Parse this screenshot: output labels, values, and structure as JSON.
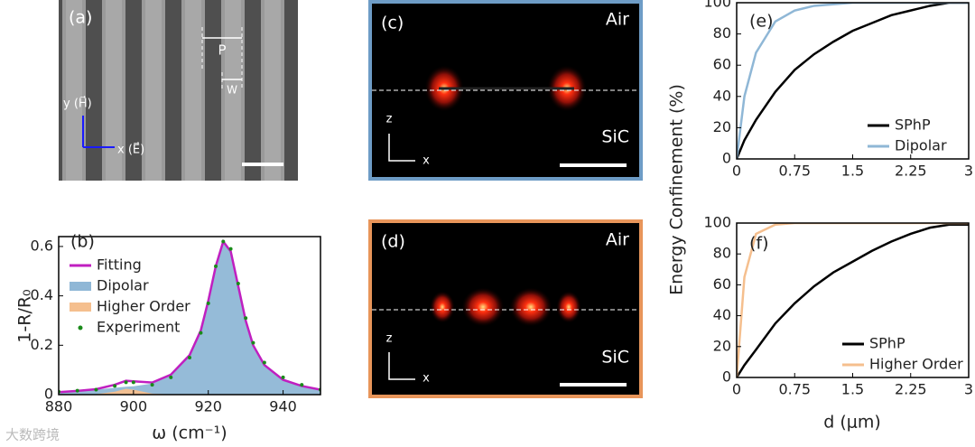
{
  "chart_data": [
    {
      "type": "line",
      "panel_label": "(b)",
      "xlabel": "ω (cm⁻¹)",
      "ylabel": "1-R/R₀",
      "x": [
        880,
        885,
        890,
        895,
        898,
        900,
        905,
        910,
        915,
        918,
        920,
        922,
        924,
        926,
        928,
        930,
        932,
        935,
        940,
        945,
        950
      ],
      "series": [
        {
          "name": "Fitting",
          "color": "#c01fc0",
          "mark": "line",
          "values": [
            0.01,
            0.015,
            0.022,
            0.04,
            0.056,
            0.054,
            0.049,
            0.081,
            0.16,
            0.26,
            0.38,
            0.52,
            0.62,
            0.58,
            0.44,
            0.3,
            0.2,
            0.12,
            0.06,
            0.035,
            0.02
          ]
        },
        {
          "name": "Dipolar",
          "color": "#8fb7d6",
          "mark": "area",
          "values": [
            0.01,
            0.015,
            0.02,
            0.028,
            0.032,
            0.034,
            0.045,
            0.08,
            0.16,
            0.26,
            0.38,
            0.52,
            0.62,
            0.58,
            0.44,
            0.3,
            0.2,
            0.12,
            0.06,
            0.035,
            0.02
          ]
        },
        {
          "name": "Higher Order",
          "color": "#f5bf8e",
          "mark": "area",
          "values": [
            0,
            0,
            0.002,
            0.012,
            0.024,
            0.02,
            0.004,
            0.001,
            0,
            0,
            0,
            0,
            0,
            0,
            0,
            0,
            0,
            0,
            0,
            0,
            0
          ]
        },
        {
          "name": "Experiment",
          "color": "#1a8a1a",
          "mark": "dots",
          "values": [
            0.012,
            0.016,
            0.02,
            0.035,
            0.05,
            0.05,
            0.04,
            0.07,
            0.15,
            0.25,
            0.37,
            0.52,
            0.62,
            0.59,
            0.45,
            0.31,
            0.21,
            0.13,
            0.07,
            0.04,
            0.02
          ]
        }
      ],
      "xlim": [
        880,
        950
      ],
      "xticks": [
        880,
        900,
        920,
        940
      ],
      "ylim": [
        0,
        0.64
      ],
      "yticks": [
        0,
        0.2,
        0.4,
        0.6
      ],
      "legend": "upper left"
    },
    {
      "type": "line",
      "panel_label": "(e)",
      "ylabel": "Energy Confinement (%)",
      "x": [
        0,
        0.1,
        0.25,
        0.5,
        0.75,
        1,
        1.25,
        1.5,
        1.75,
        2,
        2.25,
        2.5,
        2.75,
        3
      ],
      "series": [
        {
          "name": "SPhP",
          "color": "#000000",
          "mark": "line",
          "values": [
            0,
            12,
            25,
            43,
            57,
            67,
            75,
            82,
            87,
            92,
            95,
            98,
            100,
            100
          ]
        },
        {
          "name": "Dipolar",
          "color": "#8fb7d6",
          "mark": "line",
          "values": [
            0,
            40,
            68,
            88,
            95,
            98,
            99,
            100,
            100,
            100,
            100,
            100,
            100,
            100
          ]
        }
      ],
      "xlim": [
        0,
        3
      ],
      "xticks": [
        0,
        0.75,
        1.5,
        2.25,
        3
      ],
      "ylim": [
        0,
        100
      ],
      "yticks": [
        0,
        20,
        40,
        60,
        80,
        100
      ],
      "legend": "lower right"
    },
    {
      "type": "line",
      "panel_label": "(f)",
      "xlabel": "d (μm)",
      "x": [
        0,
        0.1,
        0.25,
        0.5,
        0.75,
        1,
        1.25,
        1.5,
        1.75,
        2,
        2.25,
        2.5,
        2.75,
        3
      ],
      "series": [
        {
          "name": "SPhP",
          "color": "#000000",
          "mark": "line",
          "values": [
            0,
            8,
            18,
            35,
            48,
            59,
            68,
            75,
            82,
            88,
            93,
            97,
            99,
            99
          ]
        },
        {
          "name": "Higher Order",
          "color": "#f5bf8e",
          "mark": "line",
          "values": [
            0,
            65,
            93,
            99,
            100,
            100,
            100,
            100,
            100,
            100,
            100,
            100,
            100,
            100
          ]
        }
      ],
      "xlim": [
        0,
        3
      ],
      "xticks": [
        0,
        0.75,
        1.5,
        2.25,
        3
      ],
      "ylim": [
        0,
        100
      ],
      "yticks": [
        0,
        20,
        40,
        60,
        80,
        100
      ],
      "legend": "lower right"
    }
  ],
  "panels": {
    "a": {
      "label": "(a)",
      "period": "P",
      "width": "W",
      "y_axis": "y (H⃗)",
      "x_axis": "x (E⃗)"
    },
    "c": {
      "label": "(c)",
      "top": "Air",
      "bottom": "SiC",
      "z": "z",
      "x": "x"
    },
    "d": {
      "label": "(d)",
      "top": "Air",
      "bottom": "SiC",
      "z": "z",
      "x": "x"
    }
  },
  "watermark": "大数跨境"
}
